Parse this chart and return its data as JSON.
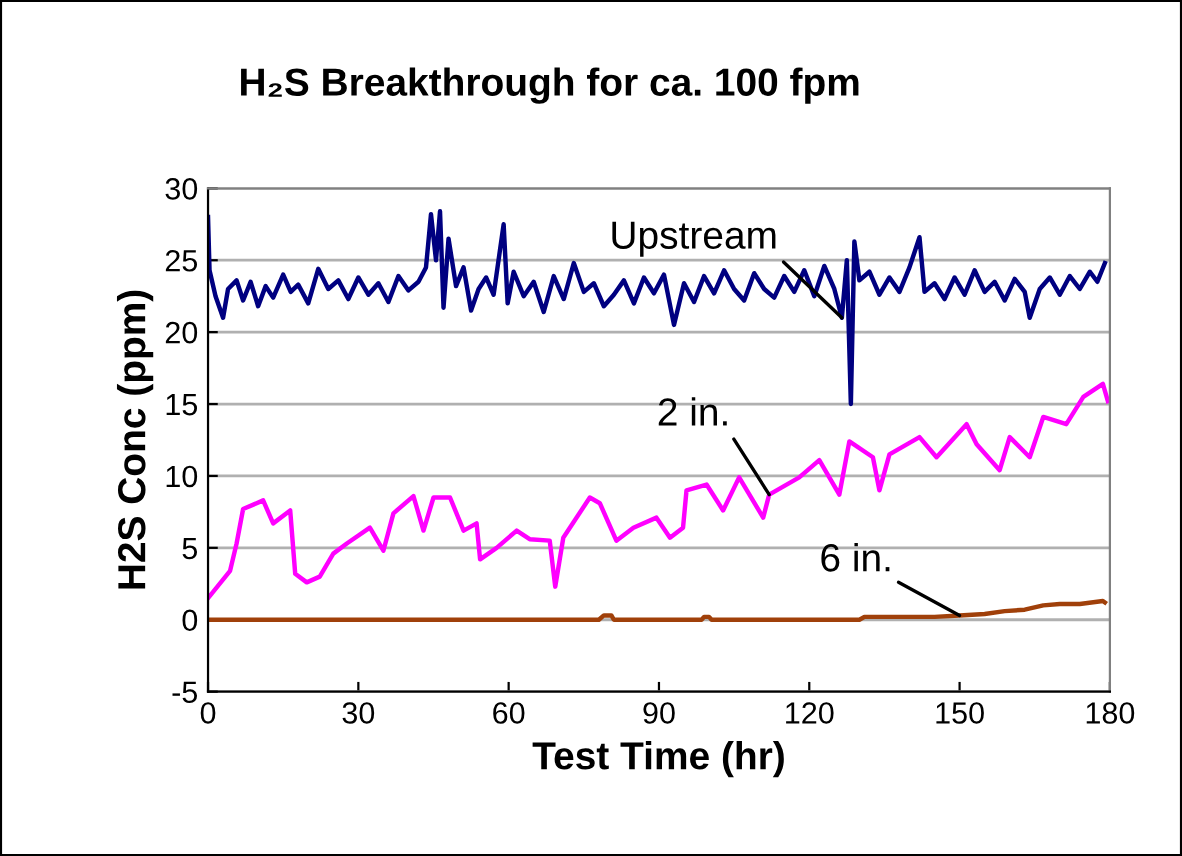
{
  "chart_data": {
    "type": "line",
    "title": "H₂S Breakthrough for ca. 100 fpm",
    "xlabel": "Test Time (hr)",
    "ylabel": "H2S Conc (ppm)",
    "xlim": [
      0,
      180
    ],
    "ylim": [
      -5,
      30
    ],
    "xticks": [
      0,
      30,
      60,
      90,
      120,
      150,
      180
    ],
    "yticks": [
      -5,
      0,
      5,
      10,
      15,
      20,
      25,
      30
    ],
    "grid": "y",
    "legend": false,
    "marker": "none",
    "line_style": "solid",
    "series": [
      {
        "name": "Upstream",
        "color": "#000080",
        "x": [
          0,
          0.3,
          1.5,
          3,
          4,
          5.7,
          7,
          8.5,
          10,
          11.5,
          13,
          15,
          16.5,
          18,
          20,
          22,
          24,
          26,
          28,
          30,
          32,
          34,
          36,
          38,
          40,
          42,
          43.5,
          44.5,
          45.5,
          46.3,
          47,
          48,
          49.5,
          51,
          52.5,
          54,
          55.5,
          57,
          59,
          59.8,
          61,
          63,
          65,
          67,
          69,
          71,
          73,
          75,
          77,
          79,
          81,
          83,
          85,
          87,
          89,
          91,
          93,
          95,
          97,
          99,
          101,
          103,
          105,
          107,
          109,
          111,
          113,
          115,
          117,
          119,
          121,
          123,
          125,
          126.5,
          127.5,
          128.3,
          129,
          130,
          132,
          134,
          136,
          138,
          140,
          142,
          143,
          145,
          147,
          149,
          151,
          153,
          155,
          157,
          159,
          161,
          163,
          164,
          166,
          168,
          170,
          172,
          174,
          176,
          177.5,
          179
        ],
        "values": [
          28,
          24.3,
          22.5,
          21,
          23,
          23.6,
          22.2,
          23.5,
          21.8,
          23.2,
          22.4,
          24,
          22.8,
          23.3,
          22,
          24.4,
          23,
          23.6,
          22.3,
          23.8,
          22.6,
          23.4,
          22.1,
          23.9,
          22.9,
          23.5,
          24.5,
          28.2,
          25,
          28.4,
          21.7,
          26.5,
          23.2,
          24.5,
          21.5,
          23,
          23.8,
          22.6,
          27.5,
          22,
          24.2,
          22.5,
          23.5,
          21.4,
          23.9,
          22.3,
          24.8,
          22.8,
          23.4,
          21.8,
          22.6,
          23.6,
          22,
          23.8,
          22.7,
          24,
          20.5,
          23.4,
          22.1,
          23.9,
          22.7,
          24.3,
          23,
          22.2,
          24.1,
          23,
          22.4,
          23.9,
          22.8,
          24.3,
          22.5,
          24.6,
          23,
          21,
          25,
          15,
          26.3,
          23.6,
          24.2,
          22.6,
          23.8,
          22.8,
          24.5,
          26.6,
          22.8,
          23.4,
          22.3,
          23.8,
          22.6,
          24.3,
          22.8,
          23.5,
          22.2,
          23.7,
          22.8,
          21,
          23,
          23.8,
          22.6,
          23.9,
          23,
          24.2,
          23.5,
          24.8
        ]
      },
      {
        "name": "2 in.",
        "color": "#ff00ff",
        "x": [
          0,
          4.4,
          5.7,
          7,
          11,
          13,
          16.4,
          17.4,
          19.7,
          22.3,
          25,
          27.7,
          32.3,
          35,
          37,
          41,
          43,
          45,
          48.3,
          51,
          53.6,
          54.3,
          57.6,
          61.6,
          64.2,
          68.2,
          69.3,
          70.9,
          76.2,
          78.2,
          81.5,
          84.9,
          89.5,
          92.2,
          94.8,
          95.5,
          99.5,
          102.8,
          106,
          110.8,
          112,
          118,
          122,
          126,
          128,
          132.7,
          134,
          136,
          142,
          145.4,
          151.4,
          153.4,
          158,
          160,
          164,
          166.7,
          171.3,
          174.7,
          178.6,
          179.6
        ],
        "values": [
          1.5,
          3.4,
          5.3,
          7.7,
          8.3,
          6.7,
          7.6,
          3.2,
          2.6,
          3,
          4.6,
          5.3,
          6.4,
          4.8,
          7.4,
          8.6,
          6.2,
          8.5,
          8.5,
          6.2,
          6.7,
          4.2,
          5,
          6.2,
          5.6,
          5.5,
          2.3,
          5.7,
          8.5,
          8.1,
          5.5,
          6.4,
          7.1,
          5.7,
          6.4,
          9,
          9.4,
          7.6,
          9.9,
          7.1,
          8.7,
          9.9,
          11.1,
          8.7,
          12.4,
          11.3,
          9,
          11.5,
          12.7,
          11.3,
          13.6,
          12.2,
          10.4,
          12.7,
          11.3,
          14.1,
          13.6,
          15.5,
          16.4,
          15.2
        ]
      },
      {
        "name": "6 in.",
        "color": "#a0400a",
        "x": [
          0,
          78,
          79,
          80.5,
          81,
          98.5,
          99,
          100,
          100.5,
          130,
          131,
          140,
          145,
          150,
          155,
          159,
          163,
          166.7,
          170,
          174,
          178.6,
          179
        ],
        "values": [
          0,
          0,
          0.3,
          0.3,
          0,
          0,
          0.2,
          0.2,
          0,
          0,
          0.2,
          0.2,
          0.2,
          0.3,
          0.4,
          0.6,
          0.7,
          1,
          1.1,
          1.1,
          1.3,
          1.2
        ]
      }
    ]
  }
}
